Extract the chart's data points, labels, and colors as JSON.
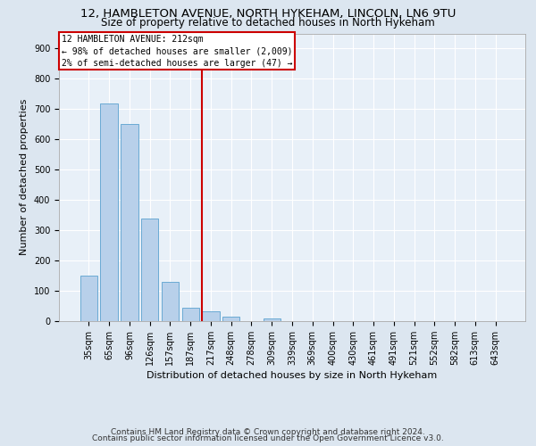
{
  "title1": "12, HAMBLETON AVENUE, NORTH HYKEHAM, LINCOLN, LN6 9TU",
  "title2": "Size of property relative to detached houses in North Hykeham",
  "xlabel": "Distribution of detached houses by size in North Hykeham",
  "ylabel": "Number of detached properties",
  "footer1": "Contains HM Land Registry data © Crown copyright and database right 2024.",
  "footer2": "Contains public sector information licensed under the Open Government Licence v3.0.",
  "categories": [
    "35sqm",
    "65sqm",
    "96sqm",
    "126sqm",
    "157sqm",
    "187sqm",
    "217sqm",
    "248sqm",
    "278sqm",
    "309sqm",
    "339sqm",
    "369sqm",
    "400sqm",
    "430sqm",
    "461sqm",
    "491sqm",
    "521sqm",
    "552sqm",
    "582sqm",
    "613sqm",
    "643sqm"
  ],
  "values": [
    150,
    718,
    651,
    338,
    131,
    45,
    33,
    15,
    0,
    10,
    0,
    0,
    0,
    0,
    0,
    0,
    0,
    0,
    0,
    0,
    0
  ],
  "bar_color": "#b8d0ea",
  "bar_edge_color": "#6aaad4",
  "vline_color": "#cc0000",
  "vline_x_index": 6,
  "annotation_line0": "12 HAMBLETON AVENUE: 212sqm",
  "annotation_line1": "← 98% of detached houses are smaller (2,009)",
  "annotation_line2": "2% of semi-detached houses are larger (47) →",
  "annotation_box_color": "#ffffff",
  "annotation_box_edge": "#cc0000",
  "ylim": [
    0,
    950
  ],
  "yticks": [
    0,
    100,
    200,
    300,
    400,
    500,
    600,
    700,
    800,
    900
  ],
  "bg_color": "#dce6f0",
  "plot_bg_color": "#e8f0f8",
  "grid_color": "#ffffff",
  "title1_fontsize": 9.5,
  "title2_fontsize": 8.5,
  "xlabel_fontsize": 8,
  "ylabel_fontsize": 8,
  "tick_fontsize": 7,
  "annot_fontsize": 7,
  "footer_fontsize": 6.5
}
